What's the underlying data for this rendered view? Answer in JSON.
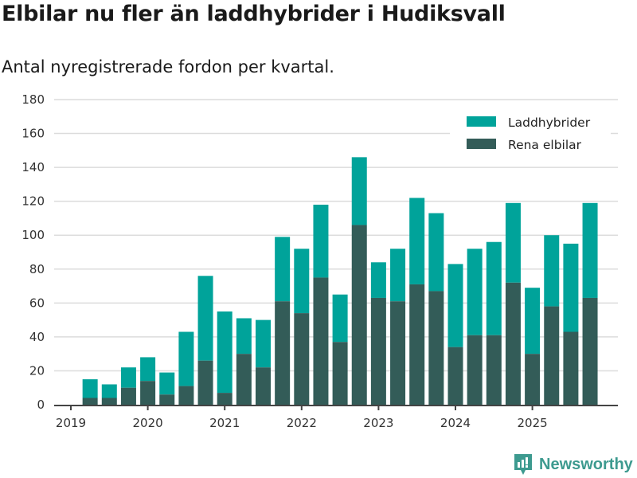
{
  "chart_data": {
    "type": "bar",
    "stacked": true,
    "title": "Elbilar nu fler än laddhybrider i Hudiksvall",
    "subtitle": "Antal nyregistrerade fordon per kvartal.",
    "xlabel": "",
    "ylabel": "",
    "ylim": [
      0,
      180
    ],
    "yticks": [
      "0",
      "20",
      "40",
      "60",
      "80",
      "100",
      "120",
      "140",
      "160",
      "180"
    ],
    "xticks": [
      "2019",
      "2020",
      "2021",
      "2022",
      "2023",
      "2024",
      "2025"
    ],
    "grid": true,
    "legend_position": "top-right",
    "categories": [
      "2019 Q1",
      "2019 Q2",
      "2019 Q3",
      "2019 Q4",
      "2020 Q1",
      "2020 Q2",
      "2020 Q3",
      "2020 Q4",
      "2021 Q1",
      "2021 Q2",
      "2021 Q3",
      "2021 Q4",
      "2022 Q1",
      "2022 Q2",
      "2022 Q3",
      "2022 Q4",
      "2023 Q1",
      "2023 Q2",
      "2023 Q3",
      "2023 Q4",
      "2024 Q1",
      "2024 Q2",
      "2024 Q3",
      "2024 Q4",
      "2025 Q1",
      "2025 Q2",
      "2025 Q3",
      "2025 Q4"
    ],
    "series": [
      {
        "name": "Rena elbilar",
        "color": "#335c58",
        "values": [
          0,
          4,
          4,
          10,
          14,
          6,
          11,
          26,
          7,
          30,
          22,
          61,
          54,
          75,
          37,
          106,
          63,
          61,
          71,
          67,
          34,
          41,
          41,
          72,
          30,
          58,
          43,
          63
        ]
      },
      {
        "name": "Laddhybrider",
        "color": "#00a39a",
        "values": [
          0,
          11,
          8,
          12,
          14,
          13,
          32,
          50,
          48,
          21,
          28,
          38,
          38,
          43,
          28,
          40,
          21,
          31,
          51,
          46,
          49,
          51,
          55,
          47,
          39,
          42,
          52,
          56
        ]
      }
    ]
  },
  "branding": {
    "logo_text": "Newsworthy"
  }
}
